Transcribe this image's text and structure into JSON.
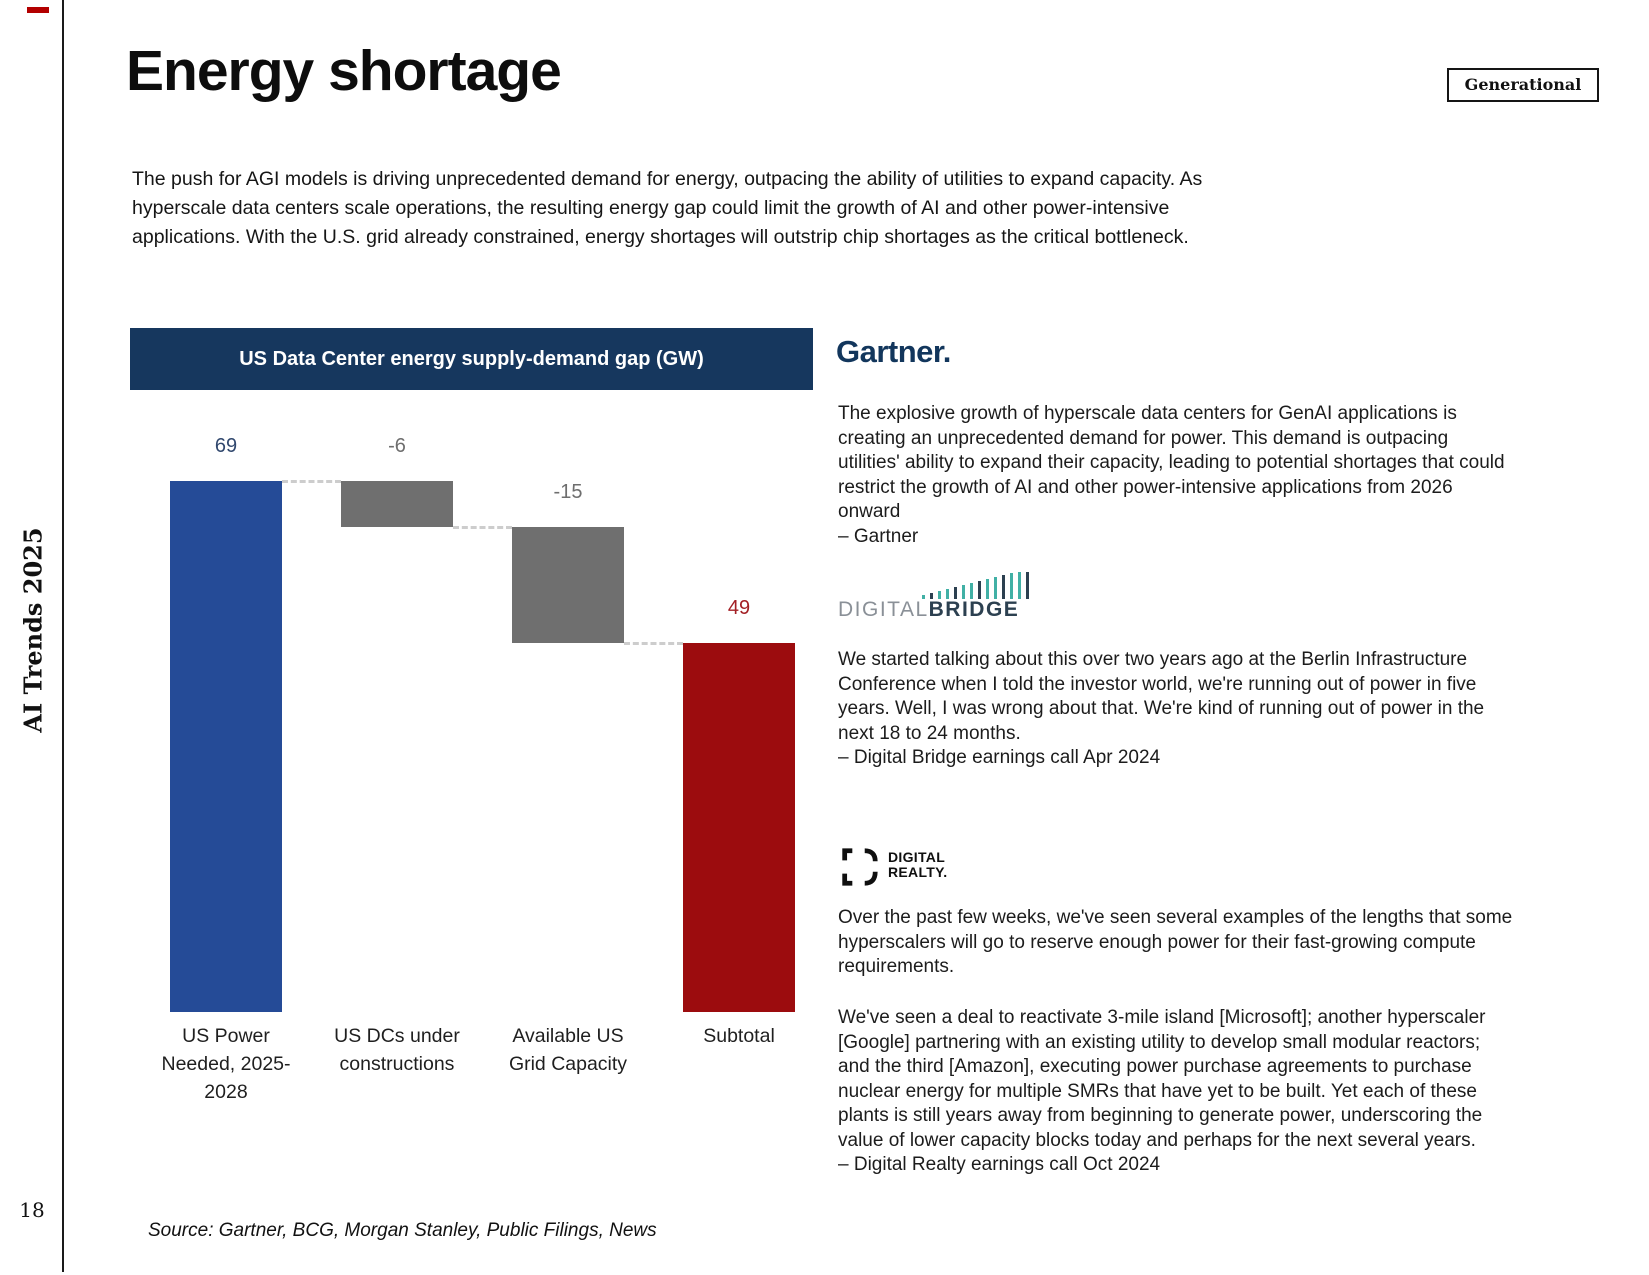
{
  "page": {
    "title": "Energy shortage",
    "badge": "Generational",
    "sidebar_text": "AI Trends 2025",
    "page_number": "18",
    "intro_lines": [
      "The push for AGI models is driving unprecedented demand for energy, outpacing the ability of utilities to expand capacity. As",
      "hyperscale data centers scale operations, the resulting energy gap could limit the growth of AI and other power-intensive",
      "applications. With the U.S. grid already constrained, energy shortages will outstrip chip shortages as the critical bottleneck."
    ],
    "source": "Source: Gartner, BCG, Morgan Stanley, Public Filings, News"
  },
  "chart_data": {
    "type": "bar",
    "subtype": "waterfall",
    "title": "US Data Center energy supply-demand gap (GW)",
    "unit": "GW",
    "categories": [
      "US Power Needed, 2025-2028",
      "US DCs under constructions",
      "Available US Grid Capacity",
      "Subtotal"
    ],
    "values": [
      69,
      -6,
      -15,
      49
    ],
    "ylim": [
      0,
      69
    ],
    "grid": false,
    "bars": [
      {
        "label_lines": [
          "US Power",
          "Needed, 2025-",
          "2028"
        ],
        "value": 69,
        "display": "69",
        "kind": "delta",
        "bar_color": "#254b97",
        "label_color": "#31486e"
      },
      {
        "label_lines": [
          "US DCs under",
          "constructions"
        ],
        "value": -6,
        "display": "-6",
        "kind": "delta",
        "bar_color": "#6f6f6f",
        "label_color": "#6e6e6e"
      },
      {
        "label_lines": [
          "Available US",
          "Grid Capacity"
        ],
        "value": -15,
        "display": "-15",
        "kind": "delta",
        "bar_color": "#6f6f6f",
        "label_color": "#6e6e6e"
      },
      {
        "label_lines": [
          "Subtotal"
        ],
        "value": 49,
        "display": "49",
        "kind": "total",
        "bar_color": "#9c0c0e",
        "label_color": "#a32025"
      }
    ],
    "header_bg": "#16375e"
  },
  "quotes": {
    "gartner": {
      "logo_text": "Gartner.",
      "lines": [
        "The explosive growth of hyperscale data centers for GenAI applications is",
        "creating an unprecedented demand for power. This demand is outpacing",
        "utilities' ability to expand their capacity, leading to potential shortages that could",
        "restrict the growth of AI and other power-intensive applications from 2026",
        "onward",
        "– Gartner"
      ]
    },
    "digitalbridge": {
      "logo_left": "DIGITAL",
      "logo_right": "BRIDGE",
      "lines": [
        "We started talking about this over two years ago at the Berlin Infrastructure",
        "Conference when I told the investor world, we're running out of power in five",
        "years. Well, I was wrong about that. We're kind of running out of power in the",
        "next 18 to 24 months.",
        "– Digital Bridge earnings call Apr 2024"
      ]
    },
    "digitalrealty": {
      "logo_line1": "DIGITAL",
      "logo_line2": "REALTY.",
      "paragraph1": [
        "Over the past few weeks, we've seen several examples of the lengths that some",
        "hyperscalers will go to reserve enough power for their fast-growing compute",
        "requirements."
      ],
      "paragraph2": [
        "We've seen a deal to reactivate 3-mile island [Microsoft]; another hyperscaler",
        "[Google] partnering with an existing utility to develop small modular reactors;",
        "and the third [Amazon], executing power purchase agreements to purchase",
        "nuclear energy for multiple SMRs that have yet to be built. Yet each of these",
        "plants is still years away from beginning to generate power, underscoring the",
        "value of lower capacity blocks today and perhaps for the next several years.",
        "– Digital Realty earnings call Oct 2024"
      ]
    }
  },
  "colors": {
    "accent_red": "#b30000",
    "bar_blue": "#254b97",
    "bar_gray": "#6f6f6f",
    "bar_red": "#9c0c0e",
    "header_navy": "#16375e",
    "gartner_navy": "#12365c",
    "db_teal": "#41b0a5",
    "db_slate": "#2c4050"
  }
}
